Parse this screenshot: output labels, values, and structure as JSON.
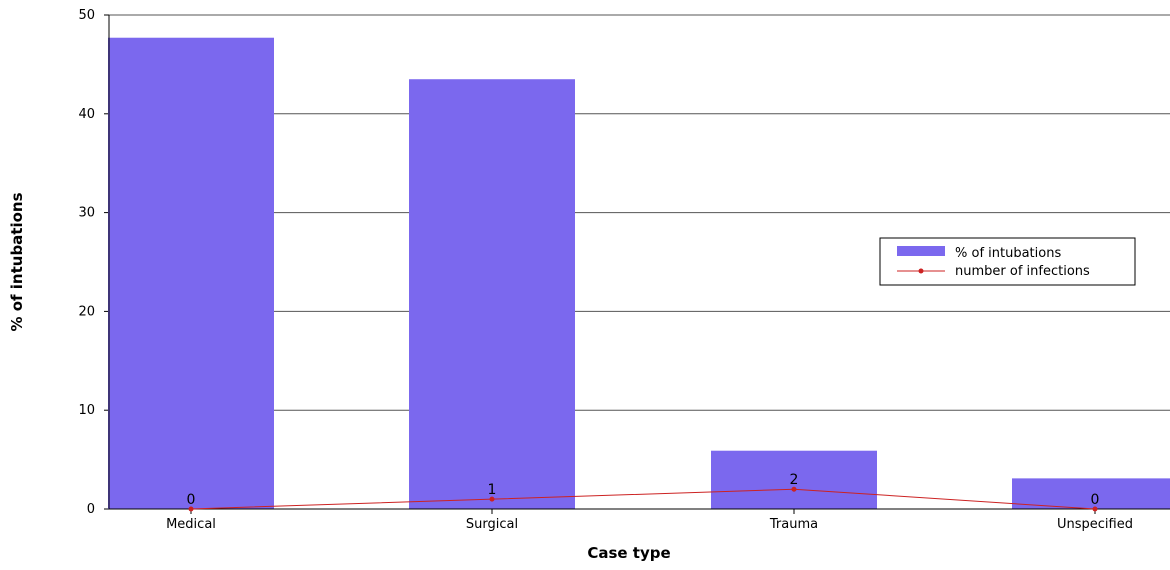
{
  "chart_data": {
    "type": "bar",
    "categories": [
      "Medical",
      "Surgical",
      "Trauma",
      "Unspecified"
    ],
    "series": [
      {
        "name": "% of intubations",
        "type": "bar",
        "values": [
          47.7,
          43.5,
          5.9,
          3.1
        ],
        "color": "#7b68ee"
      },
      {
        "name": "number of infections",
        "type": "line",
        "values": [
          0,
          1,
          2,
          0
        ],
        "color": "#cc2222"
      }
    ],
    "data_labels": [
      "0",
      "1",
      "2",
      "0"
    ],
    "xlabel": "Case type",
    "ylabel": "% of intubations",
    "ylim": [
      0,
      50
    ],
    "yticks": [
      "0",
      "10",
      "20",
      "30",
      "40",
      "50"
    ],
    "grid": true,
    "legend_position": "right"
  }
}
